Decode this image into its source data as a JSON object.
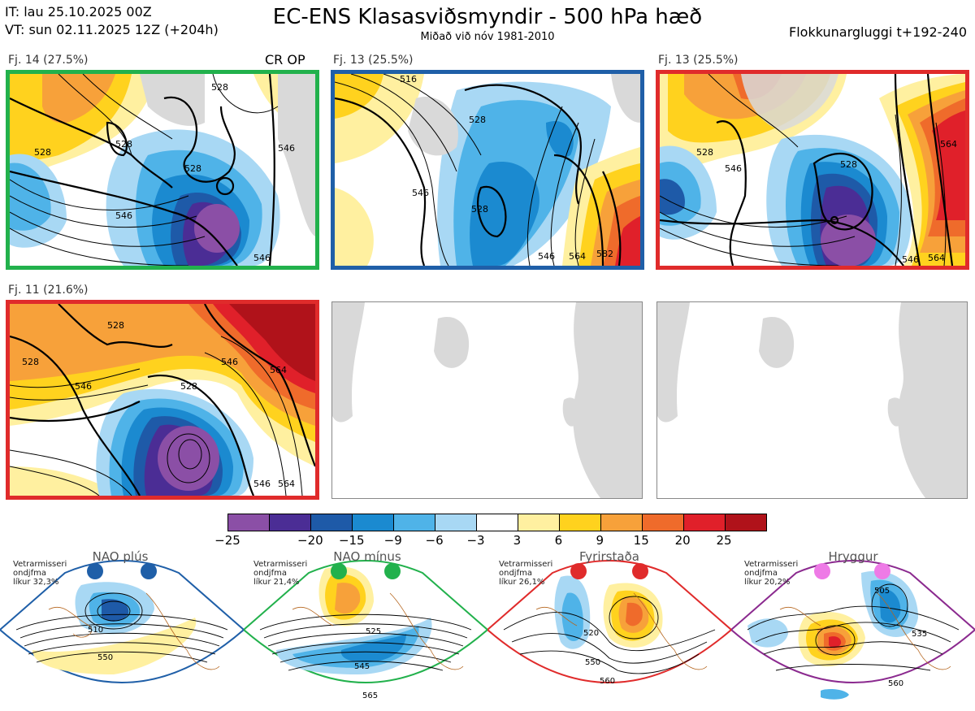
{
  "header": {
    "init_time": "IT: lau 25.10.2025 00Z",
    "valid_time": "VT: sun 02.11.2025 12Z  (+204h)",
    "title": "EC-ENS Klasasviðsmyndir - 500 hPa hæð",
    "subtitle": "Miðað við nóv 1981-2010",
    "window": "Flokkunargluggi t+192-240"
  },
  "clusters": [
    {
      "label": "Fj. 14 (27.5%)",
      "tag": "CR OP",
      "border": "#22b14c",
      "labels": [
        "528",
        "528",
        "528",
        "546",
        "546",
        "546",
        "528"
      ]
    },
    {
      "label": "Fj. 13 (25.5%)",
      "border": "#1f5fa8",
      "labels": [
        "516",
        "528",
        "546",
        "528",
        "564",
        "546",
        "582"
      ]
    },
    {
      "label": "Fj. 13 (25.5%)",
      "border": "#e02b2b",
      "labels": [
        "528",
        "546",
        "528",
        "564",
        "546",
        "564"
      ]
    },
    {
      "label": "Fj. 11 (21.6%)",
      "border": "#e02b2b",
      "labels": [
        "528",
        "546",
        "546",
        "564",
        "528",
        "528",
        "546",
        "564"
      ]
    }
  ],
  "colorbar": {
    "colors": [
      "#8b4fa6",
      "#4b2d95",
      "#1e5aa8",
      "#1b8ad0",
      "#4fb3e8",
      "#a8d8f4",
      "#ffffff",
      "#fff0a0",
      "#ffd21e",
      "#f7a13a",
      "#ef6b2b",
      "#e0202a",
      "#b0121a"
    ],
    "ticks": [
      "−25",
      "−20",
      "−15",
      "−9",
      "−6",
      "−3",
      "3",
      "6",
      "9",
      "15",
      "20",
      "25"
    ]
  },
  "regimes": [
    {
      "name": "NAO plús",
      "info": [
        "Vetrarmisseri",
        "ondjfma",
        "líkur 32,3%"
      ],
      "color": "#1f5fa8",
      "dot": "#1f5fa8",
      "labels": [
        "510",
        "550"
      ]
    },
    {
      "name": "NAO mínus",
      "info": [
        "Vetrarmisseri",
        "ondjfma",
        "líkur 21,4%"
      ],
      "color": "#22b14c",
      "dot": "#22b14c",
      "labels": [
        "525",
        "545",
        "565"
      ]
    },
    {
      "name": "Fyrirstaða",
      "info": [
        "Vetrarmisseri",
        "ondjfma",
        "líkur 26,1%"
      ],
      "color": "#e02b2b",
      "dot": "#e02b2b",
      "labels": [
        "520",
        "550",
        "560"
      ]
    },
    {
      "name": "Hryggur",
      "info": [
        "Vetrarmisseri",
        "ondjfma",
        "líkur 20,2%"
      ],
      "color": "#8b2a8f",
      "dot": "#ee7ae6",
      "labels": [
        "505",
        "535",
        "560"
      ]
    }
  ]
}
